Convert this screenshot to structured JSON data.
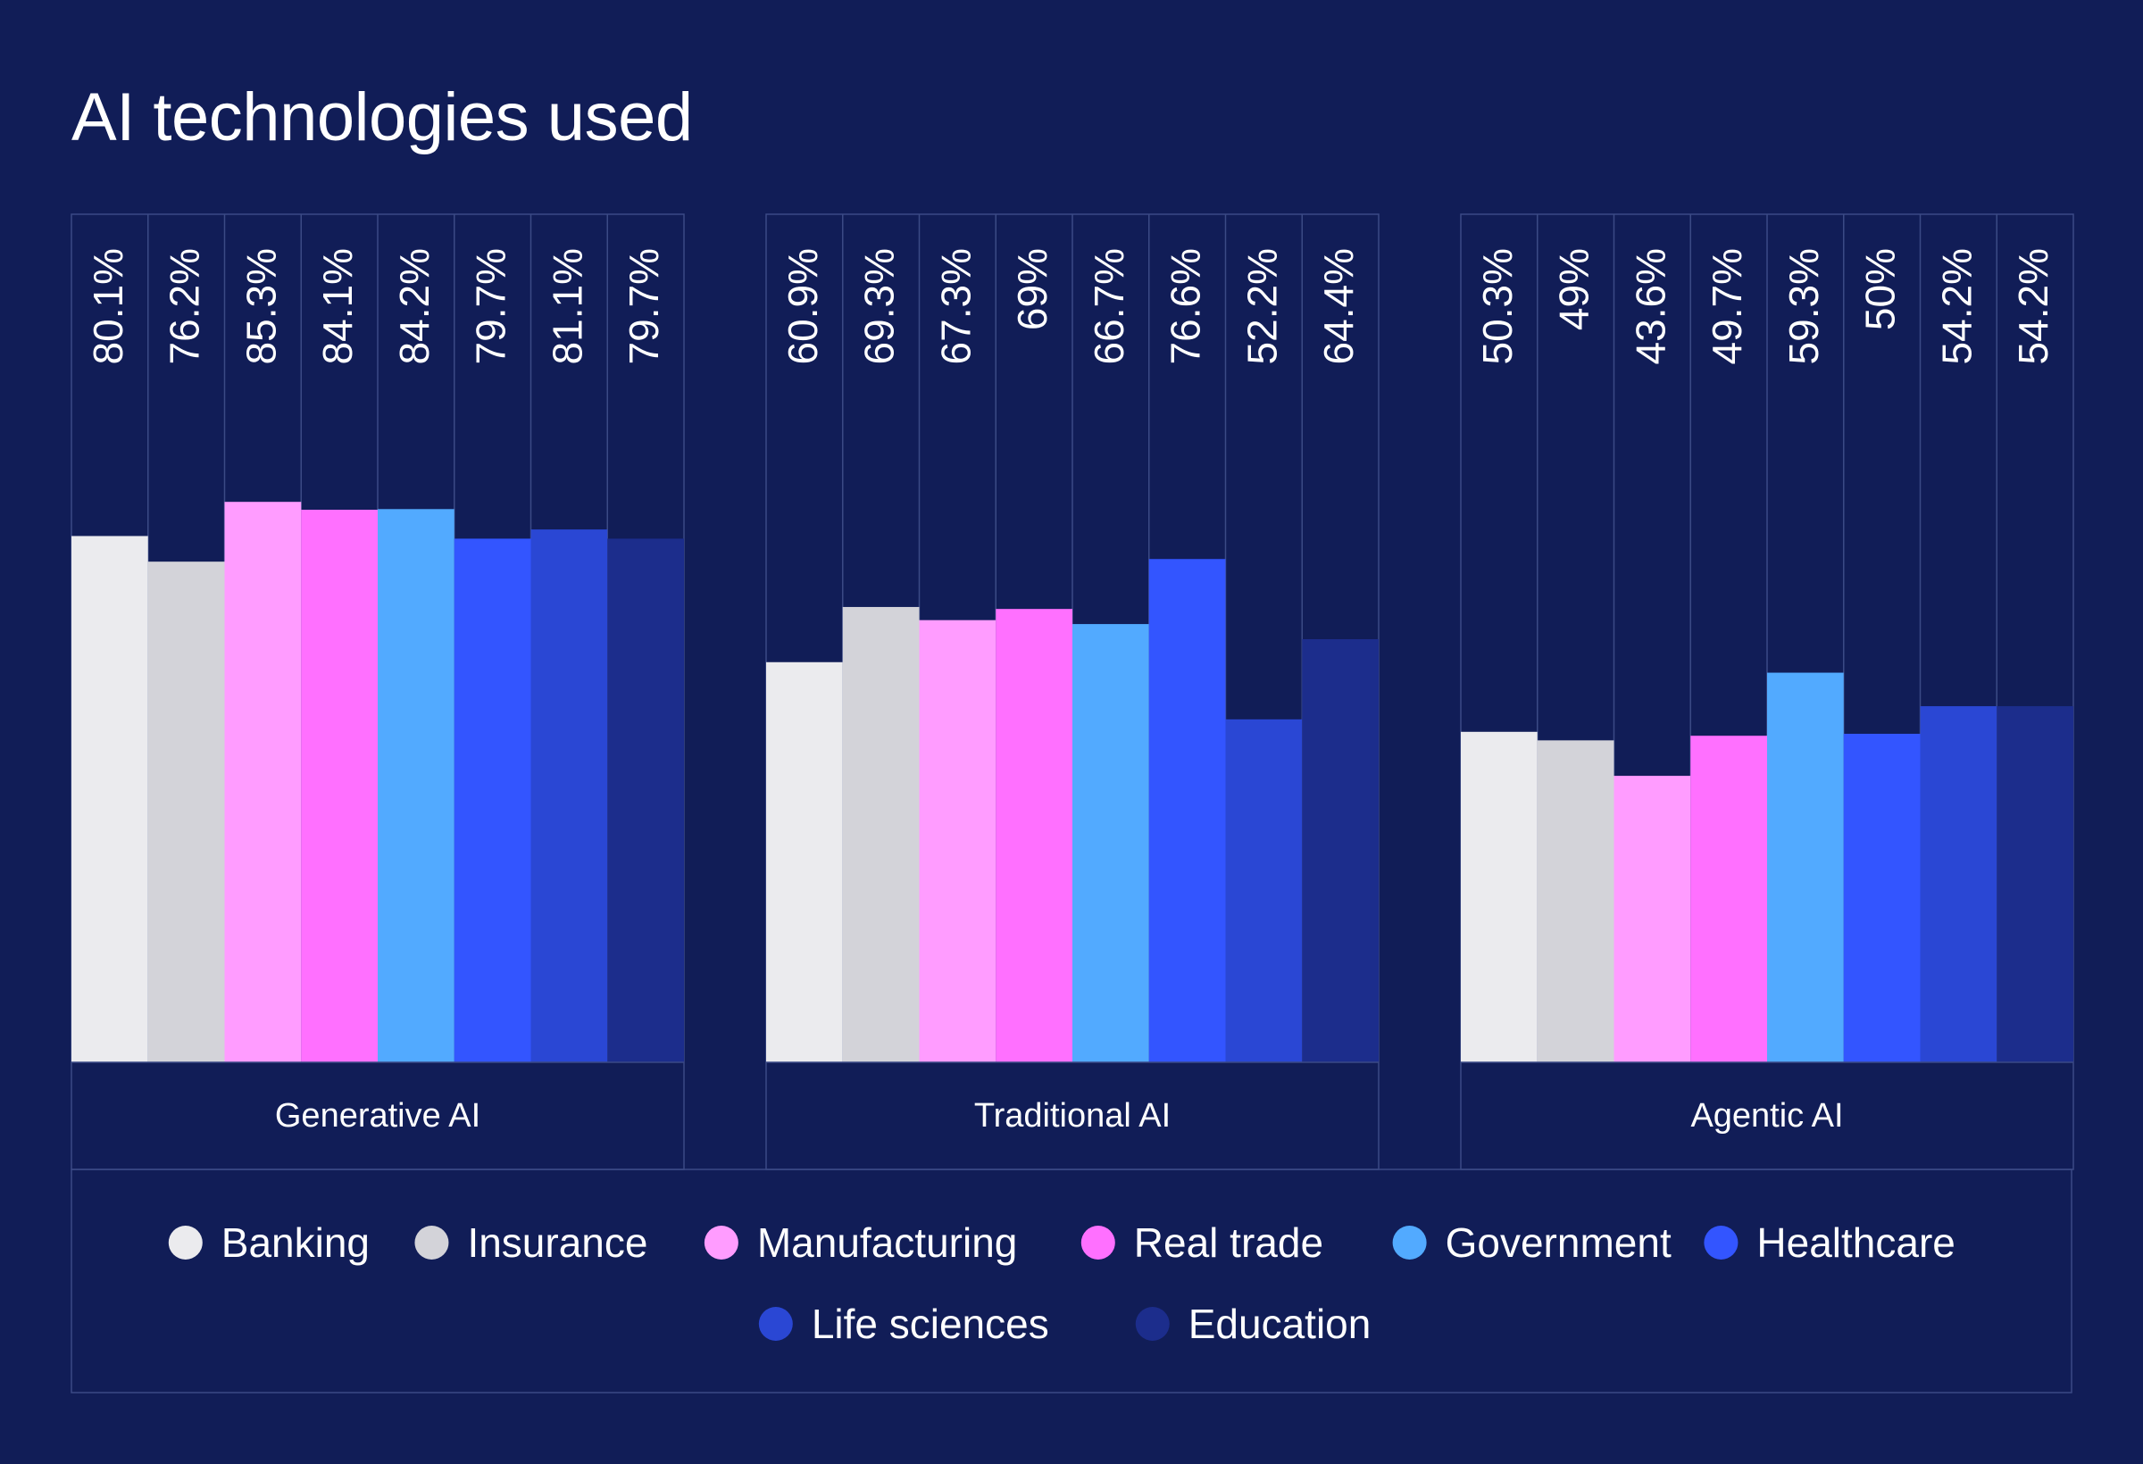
{
  "chart_data": {
    "type": "bar",
    "title": "AI technologies used",
    "xlabel": "",
    "ylabel": "",
    "ylim": [
      0,
      100
    ],
    "value_suffix": "%",
    "categories": [
      "Generative AI",
      "Traditional AI",
      "Agentic AI"
    ],
    "series": [
      {
        "name": "Banking",
        "color": "#ebebee",
        "values": [
          80.1,
          60.9,
          50.3
        ]
      },
      {
        "name": "Insurance",
        "color": "#d3d3d9",
        "values": [
          76.2,
          69.3,
          49
        ]
      },
      {
        "name": "Manufacturing",
        "color": "#ff9cff",
        "values": [
          85.3,
          67.3,
          43.6
        ]
      },
      {
        "name": "Real trade",
        "color": "#ff70ff",
        "values": [
          84.1,
          69,
          49.7
        ]
      },
      {
        "name": "Government",
        "color": "#52aaff",
        "values": [
          84.2,
          66.7,
          59.3
        ]
      },
      {
        "name": "Healthcare",
        "color": "#3355ff",
        "values": [
          79.7,
          76.6,
          50
        ]
      },
      {
        "name": "Life sciences",
        "color": "#2a47d4",
        "values": [
          81.1,
          52.2,
          54.2
        ]
      },
      {
        "name": "Education",
        "color": "#1c2d8c",
        "values": [
          79.7,
          64.4,
          54.2
        ]
      }
    ]
  },
  "colors": {
    "background": "#111d57",
    "gridline": "#3b4a85",
    "text": "#ffffff"
  }
}
